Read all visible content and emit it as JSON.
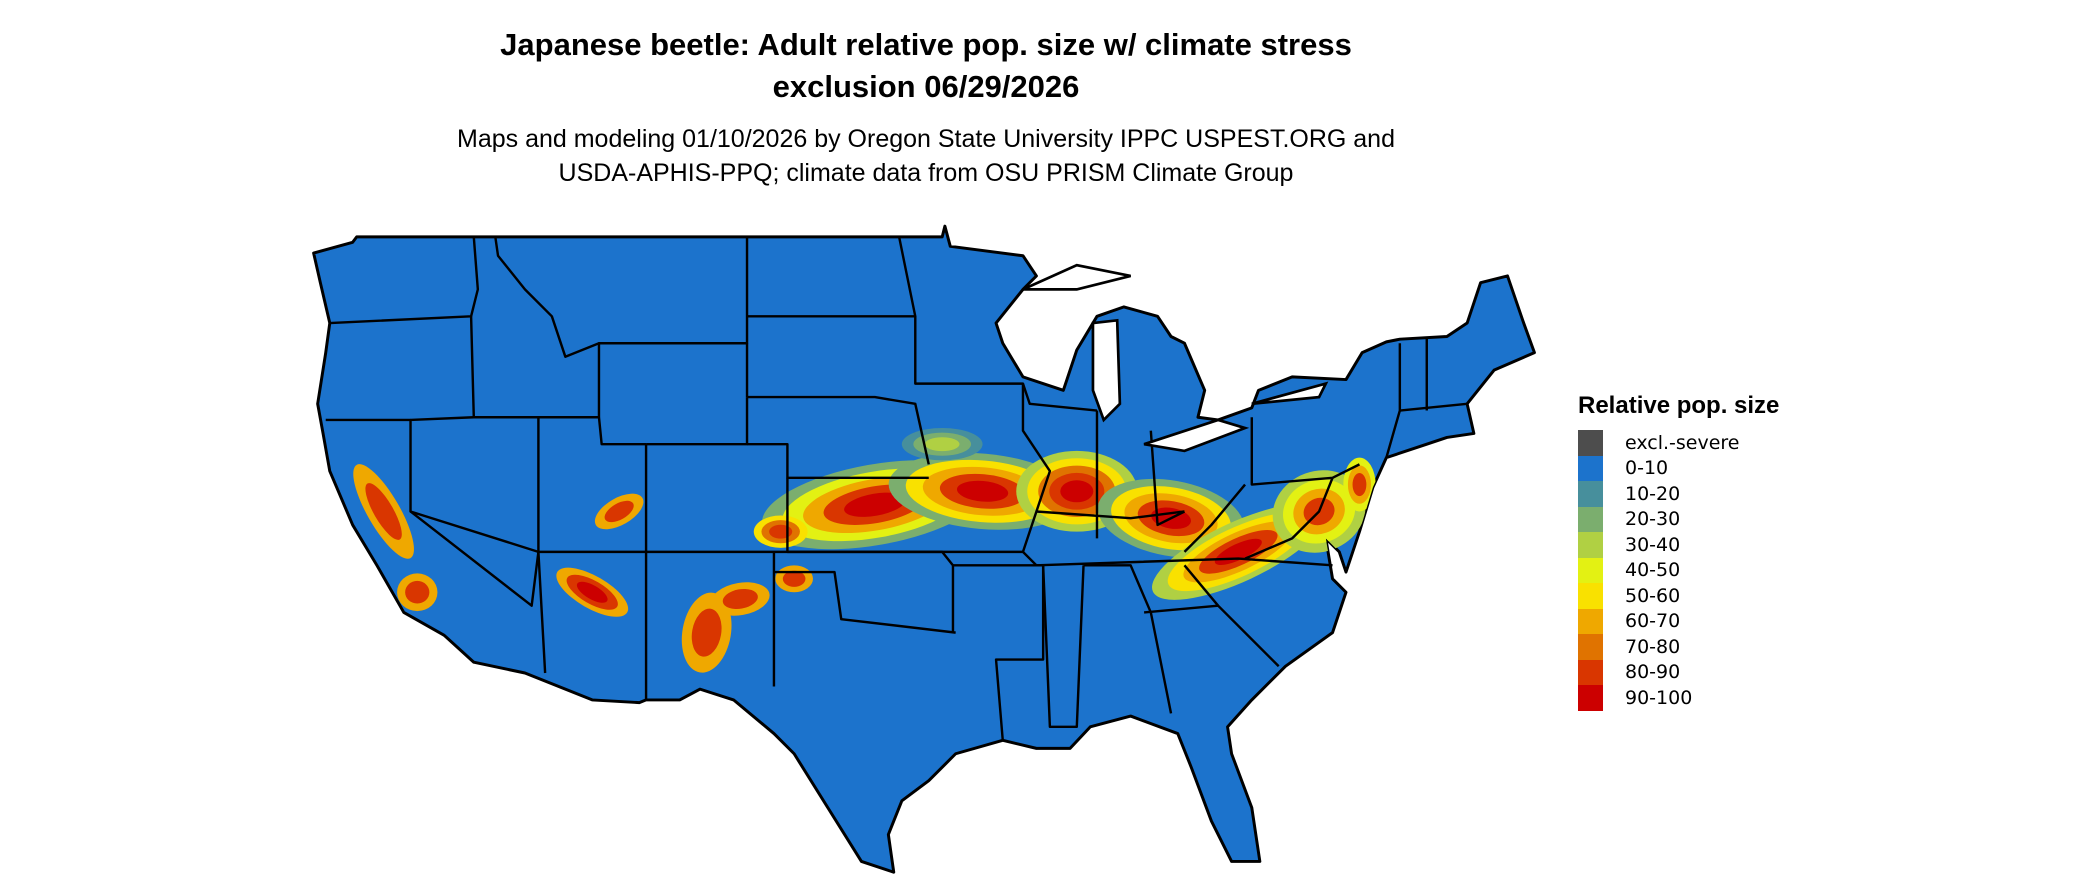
{
  "title_line1": "Japanese beetle: Adult relative pop. size w/ climate stress",
  "title_line2": "exclusion 06/29/2026",
  "subtitle_line1": "Maps and modeling 01/10/2026 by Oregon State University IPPC USPEST.ORG and",
  "subtitle_line2": "USDA-APHIS-PPQ; climate data from OSU PRISM Climate Group",
  "map": {
    "region": "Contiguous United States",
    "background_class_color": "#1C73CC"
  },
  "legend": {
    "title": "Relative pop. size",
    "items": [
      {
        "label": "excl.-severe",
        "color": "#4D4D4D"
      },
      {
        "label": "0-10",
        "color": "#1C73CC"
      },
      {
        "label": "10-20",
        "color": "#478F9C"
      },
      {
        "label": "20-30",
        "color": "#7BAE6E"
      },
      {
        "label": "30-40",
        "color": "#B0D043"
      },
      {
        "label": "40-50",
        "color": "#E3F113"
      },
      {
        "label": "50-60",
        "color": "#F9E100"
      },
      {
        "label": "60-70",
        "color": "#EFA800"
      },
      {
        "label": "70-80",
        "color": "#E07300"
      },
      {
        "label": "80-90",
        "color": "#D93600"
      },
      {
        "label": "90-100",
        "color": "#CC0000"
      }
    ]
  }
}
